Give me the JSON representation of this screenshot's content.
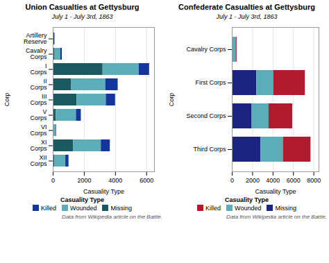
{
  "chart_data": [
    {
      "type": "bar",
      "orientation": "horizontal",
      "stacked": true,
      "title": "Union Casualties at Gettysburg",
      "subtitle": "July 1 - July 3rd, 1863",
      "categories": [
        "Artillery\nReserve",
        "Cavalry\nCorps",
        "I\nCorps",
        "II\nCorps",
        "III\nCorps",
        "V\nCorps",
        "VI\nCorps",
        "XI\nCorps",
        "XII\nCorps"
      ],
      "series": [
        {
          "name": "Missing",
          "color": "#1a5960",
          "values": [
            0,
            89,
            3193,
            1180,
            1522,
            197,
            33,
            1310,
            93
          ]
        },
        {
          "name": "Wounded",
          "color": "#5badb8",
          "values": [
            0,
            392,
            2321,
            2187,
            1882,
            1289,
            151,
            1773,
            714
          ]
        },
        {
          "name": "Killed",
          "color": "#14369c",
          "values": [
            108,
            99,
            666,
            797,
            593,
            314,
            28,
            577,
            204
          ]
        }
      ],
      "xlim": [
        0,
        6500
      ],
      "xticks": [
        0,
        2000,
        4000,
        6000
      ],
      "xlabel": "Casuality Type",
      "ylabel": "Corp",
      "grid": true,
      "legend": "bottom",
      "legend_title": "Casuality Type",
      "caption": "Data from Wikipedia article on the Battle."
    },
    {
      "type": "bar",
      "orientation": "horizontal",
      "stacked": true,
      "title": "Confederate Casualties at Gettysburg",
      "subtitle": "July 1 - July 3rd, 1863",
      "categories": [
        "Cavalry Corps",
        "First Corps",
        "Second Corps",
        "Third Corps"
      ],
      "series": [
        {
          "name": "Missing",
          "color": "#1a237e",
          "values": [
            68,
            2399,
            1938,
            2809
          ]
        },
        {
          "name": "Wounded",
          "color": "#5badb8",
          "values": [
            306,
            1659,
            1657,
            2198
          ]
        },
        {
          "name": "Killed",
          "color": "#b01c2e",
          "values": [
            93,
            3093,
            2326,
            2700
          ]
        }
      ],
      "xlim": [
        0,
        8500
      ],
      "xticks": [
        0,
        2000,
        4000,
        6000,
        8000
      ],
      "xlabel": "Casuality Type",
      "ylabel": "Corp",
      "grid": true,
      "legend": "bottom",
      "legend_title": "Casuality Type",
      "caption": "Data from Wikipedia article on the Battle."
    }
  ]
}
